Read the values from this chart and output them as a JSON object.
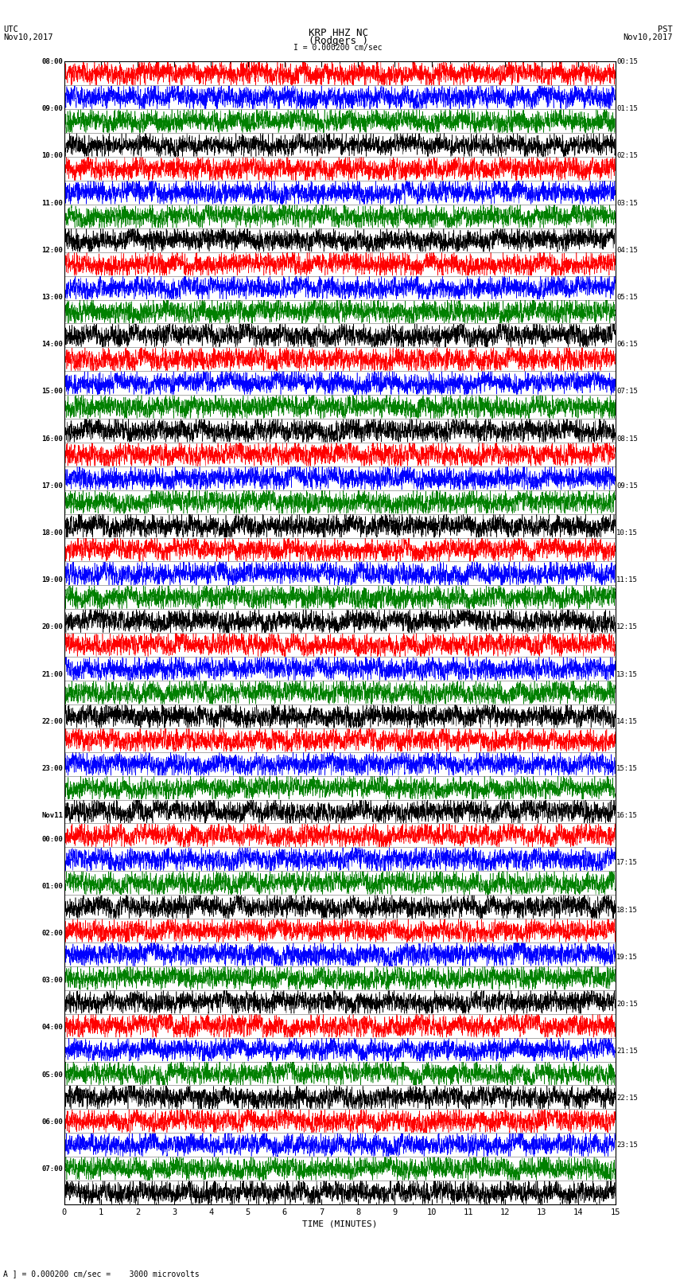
{
  "title_line1": "KRP HHZ NC",
  "title_line2": "(Rodgers )",
  "scale_label": "I = 0.000200 cm/sec",
  "left_label_line1": "UTC",
  "left_label_line2": "Nov10,2017",
  "right_label_line1": "PST",
  "right_label_line2": "Nov10,2017",
  "bottom_label": "TIME (MINUTES)",
  "bottom_note": "A ] = 0.000200 cm/sec =    3000 microvolts",
  "xlabel_ticks": [
    0,
    1,
    2,
    3,
    4,
    5,
    6,
    7,
    8,
    9,
    10,
    11,
    12,
    13,
    14,
    15
  ],
  "left_times": [
    "08:00",
    "",
    "09:00",
    "",
    "10:00",
    "",
    "11:00",
    "",
    "12:00",
    "",
    "13:00",
    "",
    "14:00",
    "",
    "15:00",
    "",
    "16:00",
    "",
    "17:00",
    "",
    "18:00",
    "",
    "19:00",
    "",
    "20:00",
    "",
    "21:00",
    "",
    "22:00",
    "",
    "23:00",
    "",
    "Nov11",
    "00:00",
    "",
    "01:00",
    "",
    "02:00",
    "",
    "03:00",
    "",
    "04:00",
    "",
    "05:00",
    "",
    "06:00",
    "",
    "07:00",
    ""
  ],
  "right_times": [
    "00:15",
    "",
    "01:15",
    "",
    "02:15",
    "",
    "03:15",
    "",
    "04:15",
    "",
    "05:15",
    "",
    "06:15",
    "",
    "07:15",
    "",
    "08:15",
    "",
    "09:15",
    "",
    "10:15",
    "",
    "11:15",
    "",
    "12:15",
    "",
    "13:15",
    "",
    "14:15",
    "",
    "15:15",
    "",
    "16:15",
    "",
    "17:15",
    "",
    "18:15",
    "",
    "19:15",
    "",
    "20:15",
    "",
    "21:15",
    "",
    "22:15",
    "",
    "23:15",
    ""
  ],
  "n_traces": 48,
  "minutes_per_trace": 15,
  "samples_per_minute": 600,
  "colors_cycle": [
    "red",
    "blue",
    "green",
    "black"
  ],
  "trace_amplitude": 0.48,
  "bg_color": "white",
  "fig_width": 8.5,
  "fig_height": 16.13
}
